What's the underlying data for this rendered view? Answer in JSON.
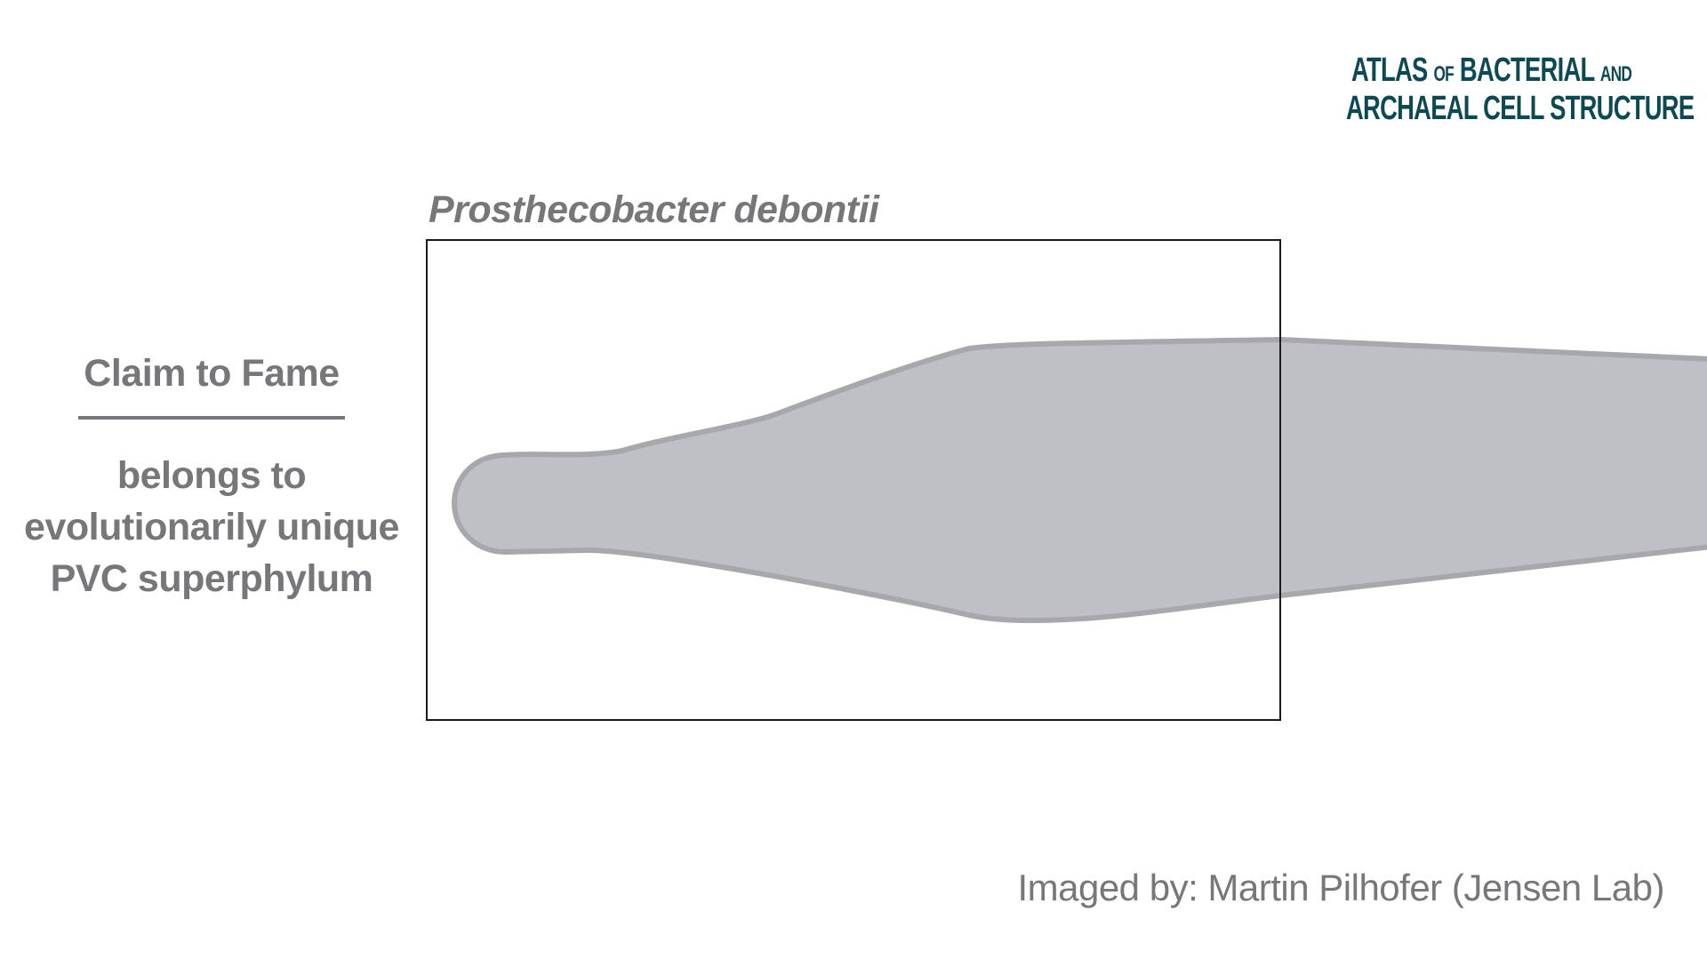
{
  "logo": {
    "line1_big_a": "A",
    "line1_rest_a": "TLAS",
    "line1_of": "OF",
    "line1_big_b": "B",
    "line1_rest_b": "ACTERIAL",
    "line1_and": "AND",
    "line2_big_a": "A",
    "line2_rest_a": "RCHAEAL",
    "line2_big_c": "C",
    "line2_rest_c": "ELL",
    "line2_big_s": "S",
    "line2_rest_s": "TRUCTURE",
    "color": "#0b4a55"
  },
  "species": {
    "name": "Prosthecobacter debontii"
  },
  "claim_to_fame": {
    "heading": "Claim to Fame",
    "lines": [
      "belongs to",
      "evolutionarily unique",
      "PVC superphylum"
    ]
  },
  "credit": {
    "text": "Imaged by: Martin Pilhofer (Jensen Lab)"
  },
  "colors": {
    "text_gray": "#77777b",
    "cell_fill": "#bfc0c4",
    "cell_outline": "#a7a8ac",
    "frame": "#1a1a1a"
  }
}
